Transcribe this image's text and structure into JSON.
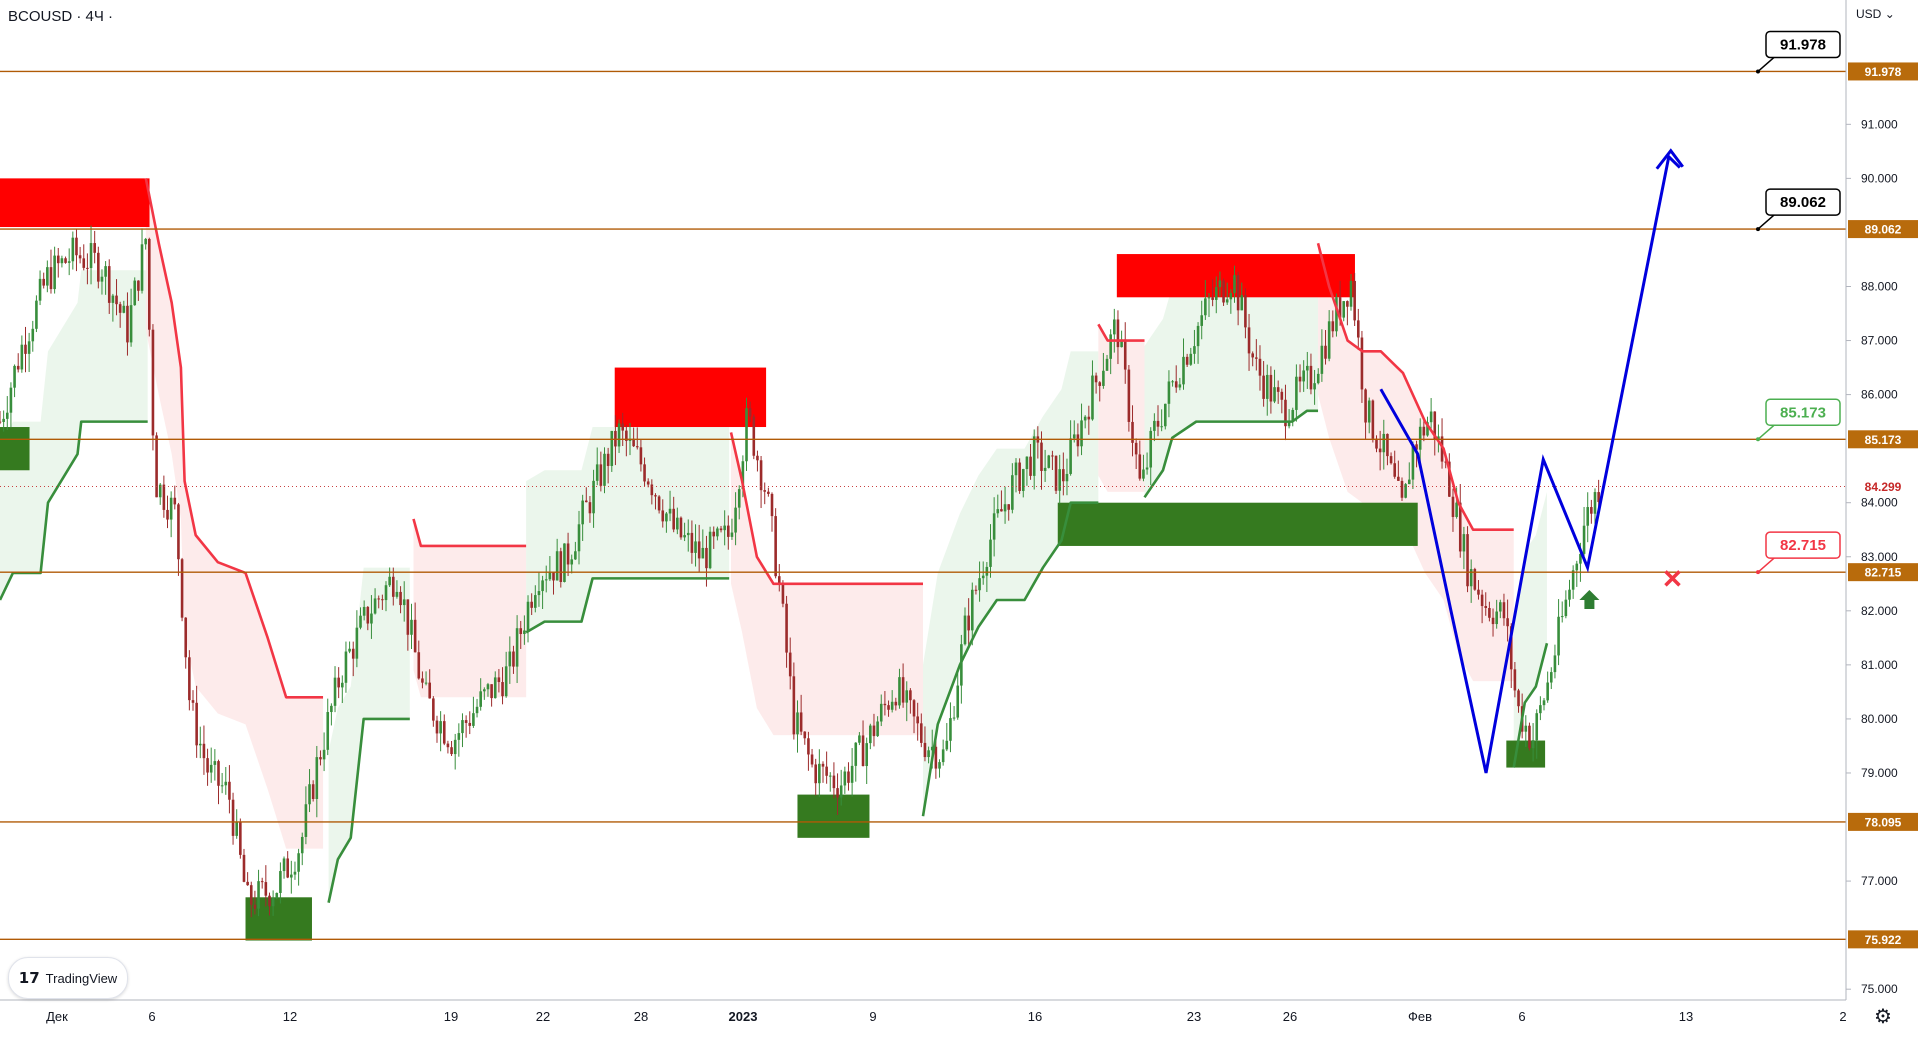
{
  "header": {
    "symbol": "BCOUSD · 4Ч ·",
    "currency": "USD"
  },
  "branding": {
    "logo_text": "TradingView"
  },
  "axis": {
    "y_ticks": [
      "91.000",
      "90.000",
      "88.000",
      "87.000",
      "86.000",
      "84.000",
      "83.000",
      "82.000",
      "81.000",
      "80.000",
      "79.000",
      "77.000",
      "75.000"
    ],
    "x_labels": [
      "Дек",
      "6",
      "12",
      "19",
      "22",
      "28",
      "2023",
      "9",
      "16",
      "23",
      "26",
      "Фев",
      "6",
      "13",
      "2"
    ]
  },
  "levels": [
    {
      "label": "91.978",
      "value": 91.978
    },
    {
      "label": "89.062",
      "value": 89.062
    },
    {
      "label": "85.173",
      "value": 85.173
    },
    {
      "label": "82.715",
      "value": 82.715
    },
    {
      "label": "78.095",
      "value": 78.095
    },
    {
      "label": "75.922",
      "value": 75.922
    }
  ],
  "current_price": {
    "label": "84.299",
    "value": 84.299
  },
  "callouts": [
    {
      "label": "91.978",
      "value": 91.978,
      "color": "#000000"
    },
    {
      "label": "89.062",
      "value": 89.062,
      "color": "#000000"
    },
    {
      "label": "85.173",
      "value": 85.173,
      "color": "#4caf50"
    },
    {
      "label": "82.715",
      "value": 82.715,
      "color": "#f23645"
    }
  ],
  "colors": {
    "level_line": "#b05a06",
    "level_tag": "#b86b0c",
    "bull_line": "#388e3c",
    "bear_line": "#f23645",
    "bull_fill": "#e8f5e9",
    "bear_fill": "#fde8e8",
    "supply_zone": "#ff0000",
    "demand_zone": "#357a1f",
    "forecast": "#0000dd",
    "candle_up": "#388e3c",
    "candle_down": "#9c2b2b"
  },
  "chart_data": {
    "type": "candlestick",
    "title": "BCOUSD · 4Ч ·",
    "ylim": [
      74.8,
      93.3
    ],
    "y_axis_ticks": [
      75,
      77,
      79,
      80,
      81,
      82,
      83,
      84,
      86,
      87,
      88,
      90,
      91
    ],
    "x_axis_labels": [
      "Дек",
      "6",
      "12",
      "19",
      "22",
      "28",
      "2023",
      "9",
      "16",
      "23",
      "26",
      "Фев",
      "6",
      "13",
      "2"
    ],
    "horizontal_levels": [
      91.978,
      89.062,
      85.173,
      82.715,
      78.095,
      75.922
    ],
    "last_price": 84.299,
    "supply_zones": [
      {
        "x": [
          0.0,
          0.081
        ],
        "y": [
          89.1,
          90.0
        ]
      },
      {
        "x": [
          0.333,
          0.415
        ],
        "y": [
          85.4,
          86.5
        ]
      },
      {
        "x": [
          0.605,
          0.734
        ],
        "y": [
          87.8,
          88.6
        ]
      }
    ],
    "demand_zones": [
      {
        "x": [
          0.0,
          0.016
        ],
        "y": [
          84.6,
          85.4
        ]
      },
      {
        "x": [
          0.133,
          0.169
        ],
        "y": [
          75.9,
          76.7
        ]
      },
      {
        "x": [
          0.432,
          0.471
        ],
        "y": [
          77.8,
          78.6
        ]
      },
      {
        "x": [
          0.573,
          0.768
        ],
        "y": [
          83.2,
          84.0
        ]
      },
      {
        "x": [
          0.816,
          0.837
        ],
        "y": [
          79.1,
          79.6
        ]
      }
    ],
    "price_path": [
      [
        0.0,
        85.5
      ],
      [
        0.012,
        86.9
      ],
      [
        0.026,
        88.2
      ],
      [
        0.04,
        88.6
      ],
      [
        0.055,
        88.4
      ],
      [
        0.069,
        87.2
      ],
      [
        0.079,
        88.9
      ],
      [
        0.084,
        84.4
      ],
      [
        0.095,
        83.8
      ],
      [
        0.103,
        80.2
      ],
      [
        0.113,
        79.0
      ],
      [
        0.124,
        78.6
      ],
      [
        0.134,
        76.6
      ],
      [
        0.15,
        76.9
      ],
      [
        0.163,
        77.7
      ],
      [
        0.172,
        79.2
      ],
      [
        0.185,
        80.9
      ],
      [
        0.2,
        82.0
      ],
      [
        0.215,
        82.7
      ],
      [
        0.23,
        80.4
      ],
      [
        0.245,
        79.6
      ],
      [
        0.26,
        80.3
      ],
      [
        0.276,
        80.9
      ],
      [
        0.291,
        82.7
      ],
      [
        0.306,
        82.9
      ],
      [
        0.32,
        84.1
      ],
      [
        0.335,
        85.3
      ],
      [
        0.35,
        84.6
      ],
      [
        0.365,
        83.5
      ],
      [
        0.38,
        83.0
      ],
      [
        0.395,
        83.4
      ],
      [
        0.405,
        85.6
      ],
      [
        0.415,
        84.2
      ],
      [
        0.422,
        82.5
      ],
      [
        0.43,
        80.0
      ],
      [
        0.44,
        79.1
      ],
      [
        0.455,
        78.8
      ],
      [
        0.47,
        79.6
      ],
      [
        0.485,
        80.6
      ],
      [
        0.5,
        79.6
      ],
      [
        0.512,
        79.3
      ],
      [
        0.523,
        81.7
      ],
      [
        0.535,
        83.2
      ],
      [
        0.548,
        84.3
      ],
      [
        0.56,
        84.9
      ],
      [
        0.575,
        84.4
      ],
      [
        0.59,
        85.9
      ],
      [
        0.605,
        87.3
      ],
      [
        0.618,
        84.2
      ],
      [
        0.625,
        85.3
      ],
      [
        0.64,
        86.6
      ],
      [
        0.655,
        87.7
      ],
      [
        0.668,
        88.2
      ],
      [
        0.68,
        86.5
      ],
      [
        0.695,
        85.7
      ],
      [
        0.71,
        86.3
      ],
      [
        0.725,
        87.6
      ],
      [
        0.732,
        88.1
      ],
      [
        0.74,
        85.7
      ],
      [
        0.75,
        84.9
      ],
      [
        0.76,
        83.8
      ],
      [
        0.765,
        85.0
      ],
      [
        0.775,
        85.6
      ],
      [
        0.785,
        84.4
      ],
      [
        0.795,
        82.8
      ],
      [
        0.805,
        82.1
      ],
      [
        0.815,
        81.9
      ],
      [
        0.822,
        80.2
      ],
      [
        0.83,
        79.6
      ],
      [
        0.838,
        80.6
      ],
      [
        0.848,
        82.1
      ],
      [
        0.858,
        83.6
      ],
      [
        0.866,
        84.3
      ]
    ],
    "supertrend_segments": [
      {
        "trend": "up",
        "points": [
          [
            0.0,
            82.2
          ],
          [
            0.007,
            82.7
          ],
          [
            0.022,
            82.7
          ],
          [
            0.026,
            84.0
          ],
          [
            0.042,
            84.9
          ],
          [
            0.044,
            85.5
          ],
          [
            0.08,
            85.5
          ]
        ]
      },
      {
        "trend": "down",
        "points": [
          [
            0.079,
            90.0
          ],
          [
            0.086,
            88.8
          ],
          [
            0.093,
            87.7
          ],
          [
            0.098,
            86.5
          ],
          [
            0.1,
            84.4
          ],
          [
            0.106,
            83.4
          ],
          [
            0.118,
            82.9
          ],
          [
            0.133,
            82.7
          ],
          [
            0.145,
            81.5
          ],
          [
            0.155,
            80.4
          ],
          [
            0.175,
            80.4
          ]
        ]
      },
      {
        "trend": "up",
        "points": [
          [
            0.178,
            76.6
          ],
          [
            0.183,
            77.4
          ],
          [
            0.19,
            77.8
          ],
          [
            0.197,
            80.0
          ],
          [
            0.206,
            80.0
          ],
          [
            0.222,
            80.0
          ]
        ]
      },
      {
        "trend": "down",
        "points": [
          [
            0.224,
            83.7
          ],
          [
            0.228,
            83.2
          ],
          [
            0.285,
            83.2
          ]
        ]
      },
      {
        "trend": "up",
        "points": [
          [
            0.285,
            81.6
          ],
          [
            0.295,
            81.8
          ],
          [
            0.315,
            81.8
          ],
          [
            0.321,
            82.6
          ],
          [
            0.345,
            82.6
          ],
          [
            0.395,
            82.6
          ]
        ]
      },
      {
        "trend": "down",
        "points": [
          [
            0.396,
            85.3
          ],
          [
            0.402,
            84.4
          ],
          [
            0.41,
            83.0
          ],
          [
            0.419,
            82.5
          ],
          [
            0.5,
            82.5
          ]
        ]
      },
      {
        "trend": "up",
        "points": [
          [
            0.5,
            78.2
          ],
          [
            0.508,
            79.9
          ],
          [
            0.52,
            81.0
          ],
          [
            0.53,
            81.7
          ],
          [
            0.54,
            82.2
          ],
          [
            0.555,
            82.2
          ],
          [
            0.565,
            82.8
          ],
          [
            0.575,
            83.3
          ],
          [
            0.58,
            84.0
          ],
          [
            0.595,
            84.0
          ]
        ]
      },
      {
        "trend": "down",
        "points": [
          [
            0.595,
            87.3
          ],
          [
            0.6,
            87.0
          ],
          [
            0.62,
            87.0
          ]
        ]
      },
      {
        "trend": "up",
        "points": [
          [
            0.62,
            84.1
          ],
          [
            0.63,
            84.6
          ],
          [
            0.635,
            85.2
          ],
          [
            0.648,
            85.5
          ],
          [
            0.7,
            85.5
          ],
          [
            0.708,
            85.7
          ],
          [
            0.714,
            85.7
          ]
        ]
      },
      {
        "trend": "down",
        "points": [
          [
            0.714,
            88.8
          ],
          [
            0.72,
            88.0
          ],
          [
            0.73,
            87.0
          ],
          [
            0.738,
            86.8
          ],
          [
            0.748,
            86.8
          ],
          [
            0.76,
            86.4
          ],
          [
            0.772,
            85.5
          ],
          [
            0.782,
            85.0
          ],
          [
            0.79,
            84.0
          ],
          [
            0.798,
            83.5
          ],
          [
            0.82,
            83.5
          ]
        ]
      },
      {
        "trend": "up",
        "points": [
          [
            0.82,
            79.1
          ],
          [
            0.826,
            80.3
          ],
          [
            0.832,
            80.6
          ],
          [
            0.838,
            81.4
          ]
        ]
      }
    ],
    "forecast_path": [
      [
        0.748,
        86.1
      ],
      [
        0.768,
        84.9
      ],
      [
        0.786,
        82.0
      ],
      [
        0.805,
        79.0
      ],
      [
        0.836,
        84.8
      ],
      [
        0.86,
        82.8
      ],
      [
        0.904,
        90.4
      ],
      [
        0.91,
        90.2
      ]
    ],
    "markers": [
      {
        "type": "cross",
        "x": 0.906,
        "y": 82.6,
        "color": "#f23645"
      },
      {
        "type": "arrow-up",
        "x": 0.861,
        "y": 82.2,
        "color": "#2e7d32"
      }
    ]
  }
}
